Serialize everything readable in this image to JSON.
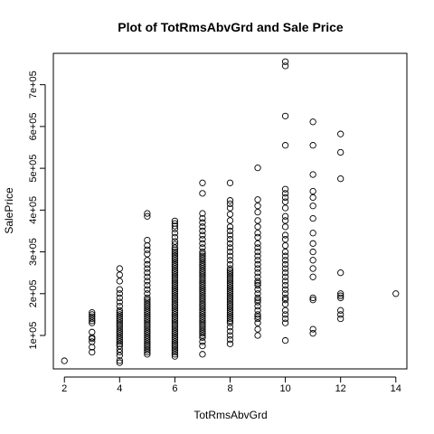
{
  "chart_data": {
    "type": "scatter",
    "title": "Plot of TotRmsAbvGrd and Sale Price",
    "xlabel": "TotRmsAbvGrd",
    "ylabel": "SalePrice",
    "xlim": [
      1.6,
      14.4
    ],
    "ylim": [
      20000,
      775000
    ],
    "x_ticks": [
      2,
      4,
      6,
      8,
      10,
      12,
      14
    ],
    "x_tick_labels": [
      "2",
      "4",
      "6",
      "8",
      "10",
      "12",
      "14"
    ],
    "y_ticks": [
      100000,
      200000,
      300000,
      400000,
      500000,
      600000,
      700000
    ],
    "y_tick_labels": [
      "1e+05",
      "2e+05",
      "3e+05",
      "4e+05",
      "5e+05",
      "6e+05",
      "7e+05"
    ],
    "grid": false,
    "marker": "open-circle",
    "points": [
      [
        2,
        39300
      ],
      [
        3,
        60000
      ],
      [
        3,
        72000
      ],
      [
        3,
        85000
      ],
      [
        3,
        92000
      ],
      [
        3,
        95000
      ],
      [
        3,
        108000
      ],
      [
        3,
        130000
      ],
      [
        3,
        135000
      ],
      [
        3,
        140000
      ],
      [
        3,
        145000
      ],
      [
        3,
        150000
      ],
      [
        3,
        155000
      ],
      [
        4,
        35000
      ],
      [
        4,
        40000
      ],
      [
        4,
        52000
      ],
      [
        4,
        60000
      ],
      [
        4,
        67000
      ],
      [
        4,
        75000
      ],
      [
        4,
        80000
      ],
      [
        4,
        85000
      ],
      [
        4,
        90000
      ],
      [
        4,
        95000
      ],
      [
        4,
        100000
      ],
      [
        4,
        105000
      ],
      [
        4,
        110000
      ],
      [
        4,
        115000
      ],
      [
        4,
        120000
      ],
      [
        4,
        125000
      ],
      [
        4,
        130000
      ],
      [
        4,
        135000
      ],
      [
        4,
        140000
      ],
      [
        4,
        145000
      ],
      [
        4,
        150000
      ],
      [
        4,
        155000
      ],
      [
        4,
        160000
      ],
      [
        4,
        170000
      ],
      [
        4,
        180000
      ],
      [
        4,
        190000
      ],
      [
        4,
        200000
      ],
      [
        4,
        210000
      ],
      [
        4,
        230000
      ],
      [
        4,
        245000
      ],
      [
        4,
        260000
      ],
      [
        5,
        55000
      ],
      [
        5,
        60000
      ],
      [
        5,
        65000
      ],
      [
        5,
        70000
      ],
      [
        5,
        75000
      ],
      [
        5,
        80000
      ],
      [
        5,
        85000
      ],
      [
        5,
        90000
      ],
      [
        5,
        95000
      ],
      [
        5,
        100000
      ],
      [
        5,
        105000
      ],
      [
        5,
        110000
      ],
      [
        5,
        115000
      ],
      [
        5,
        120000
      ],
      [
        5,
        125000
      ],
      [
        5,
        130000
      ],
      [
        5,
        135000
      ],
      [
        5,
        140000
      ],
      [
        5,
        145000
      ],
      [
        5,
        150000
      ],
      [
        5,
        155000
      ],
      [
        5,
        160000
      ],
      [
        5,
        165000
      ],
      [
        5,
        170000
      ],
      [
        5,
        175000
      ],
      [
        5,
        180000
      ],
      [
        5,
        185000
      ],
      [
        5,
        190000
      ],
      [
        5,
        200000
      ],
      [
        5,
        210000
      ],
      [
        5,
        220000
      ],
      [
        5,
        230000
      ],
      [
        5,
        240000
      ],
      [
        5,
        250000
      ],
      [
        5,
        260000
      ],
      [
        5,
        270000
      ],
      [
        5,
        280000
      ],
      [
        5,
        295000
      ],
      [
        5,
        305000
      ],
      [
        5,
        315000
      ],
      [
        5,
        328000
      ],
      [
        5,
        385000
      ],
      [
        5,
        392000
      ],
      [
        6,
        50000
      ],
      [
        6,
        55000
      ],
      [
        6,
        60000
      ],
      [
        6,
        65000
      ],
      [
        6,
        70000
      ],
      [
        6,
        75000
      ],
      [
        6,
        80000
      ],
      [
        6,
        85000
      ],
      [
        6,
        90000
      ],
      [
        6,
        95000
      ],
      [
        6,
        100000
      ],
      [
        6,
        105000
      ],
      [
        6,
        110000
      ],
      [
        6,
        115000
      ],
      [
        6,
        120000
      ],
      [
        6,
        125000
      ],
      [
        6,
        130000
      ],
      [
        6,
        135000
      ],
      [
        6,
        140000
      ],
      [
        6,
        145000
      ],
      [
        6,
        150000
      ],
      [
        6,
        155000
      ],
      [
        6,
        160000
      ],
      [
        6,
        165000
      ],
      [
        6,
        170000
      ],
      [
        6,
        175000
      ],
      [
        6,
        180000
      ],
      [
        6,
        185000
      ],
      [
        6,
        190000
      ],
      [
        6,
        195000
      ],
      [
        6,
        200000
      ],
      [
        6,
        205000
      ],
      [
        6,
        210000
      ],
      [
        6,
        215000
      ],
      [
        6,
        220000
      ],
      [
        6,
        225000
      ],
      [
        6,
        230000
      ],
      [
        6,
        235000
      ],
      [
        6,
        240000
      ],
      [
        6,
        245000
      ],
      [
        6,
        250000
      ],
      [
        6,
        255000
      ],
      [
        6,
        260000
      ],
      [
        6,
        265000
      ],
      [
        6,
        270000
      ],
      [
        6,
        275000
      ],
      [
        6,
        280000
      ],
      [
        6,
        285000
      ],
      [
        6,
        290000
      ],
      [
        6,
        295000
      ],
      [
        6,
        300000
      ],
      [
        6,
        305000
      ],
      [
        6,
        310000
      ],
      [
        6,
        318000
      ],
      [
        6,
        325000
      ],
      [
        6,
        335000
      ],
      [
        6,
        345000
      ],
      [
        6,
        355000
      ],
      [
        6,
        362000
      ],
      [
        6,
        368000
      ],
      [
        6,
        374000
      ],
      [
        7,
        55000
      ],
      [
        7,
        75000
      ],
      [
        7,
        85000
      ],
      [
        7,
        95000
      ],
      [
        7,
        100000
      ],
      [
        7,
        105000
      ],
      [
        7,
        110000
      ],
      [
        7,
        115000
      ],
      [
        7,
        120000
      ],
      [
        7,
        125000
      ],
      [
        7,
        130000
      ],
      [
        7,
        135000
      ],
      [
        7,
        140000
      ],
      [
        7,
        145000
      ],
      [
        7,
        150000
      ],
      [
        7,
        155000
      ],
      [
        7,
        160000
      ],
      [
        7,
        165000
      ],
      [
        7,
        170000
      ],
      [
        7,
        175000
      ],
      [
        7,
        180000
      ],
      [
        7,
        185000
      ],
      [
        7,
        190000
      ],
      [
        7,
        195000
      ],
      [
        7,
        200000
      ],
      [
        7,
        205000
      ],
      [
        7,
        210000
      ],
      [
        7,
        215000
      ],
      [
        7,
        220000
      ],
      [
        7,
        225000
      ],
      [
        7,
        230000
      ],
      [
        7,
        235000
      ],
      [
        7,
        240000
      ],
      [
        7,
        245000
      ],
      [
        7,
        250000
      ],
      [
        7,
        255000
      ],
      [
        7,
        260000
      ],
      [
        7,
        265000
      ],
      [
        7,
        270000
      ],
      [
        7,
        275000
      ],
      [
        7,
        280000
      ],
      [
        7,
        285000
      ],
      [
        7,
        290000
      ],
      [
        7,
        295000
      ],
      [
        7,
        300000
      ],
      [
        7,
        310000
      ],
      [
        7,
        320000
      ],
      [
        7,
        330000
      ],
      [
        7,
        340000
      ],
      [
        7,
        350000
      ],
      [
        7,
        360000
      ],
      [
        7,
        370000
      ],
      [
        7,
        380000
      ],
      [
        7,
        392000
      ],
      [
        7,
        440000
      ],
      [
        7,
        465000
      ],
      [
        8,
        80000
      ],
      [
        8,
        90000
      ],
      [
        8,
        100000
      ],
      [
        8,
        110000
      ],
      [
        8,
        120000
      ],
      [
        8,
        130000
      ],
      [
        8,
        135000
      ],
      [
        8,
        140000
      ],
      [
        8,
        145000
      ],
      [
        8,
        150000
      ],
      [
        8,
        155000
      ],
      [
        8,
        160000
      ],
      [
        8,
        165000
      ],
      [
        8,
        170000
      ],
      [
        8,
        175000
      ],
      [
        8,
        180000
      ],
      [
        8,
        185000
      ],
      [
        8,
        190000
      ],
      [
        8,
        195000
      ],
      [
        8,
        200000
      ],
      [
        8,
        205000
      ],
      [
        8,
        210000
      ],
      [
        8,
        215000
      ],
      [
        8,
        220000
      ],
      [
        8,
        225000
      ],
      [
        8,
        230000
      ],
      [
        8,
        235000
      ],
      [
        8,
        240000
      ],
      [
        8,
        245000
      ],
      [
        8,
        250000
      ],
      [
        8,
        255000
      ],
      [
        8,
        260000
      ],
      [
        8,
        270000
      ],
      [
        8,
        280000
      ],
      [
        8,
        290000
      ],
      [
        8,
        300000
      ],
      [
        8,
        310000
      ],
      [
        8,
        320000
      ],
      [
        8,
        330000
      ],
      [
        8,
        340000
      ],
      [
        8,
        350000
      ],
      [
        8,
        360000
      ],
      [
        8,
        375000
      ],
      [
        8,
        390000
      ],
      [
        8,
        405000
      ],
      [
        8,
        415000
      ],
      [
        8,
        423000
      ],
      [
        8,
        465000
      ],
      [
        9,
        100000
      ],
      [
        9,
        115000
      ],
      [
        9,
        130000
      ],
      [
        9,
        140000
      ],
      [
        9,
        145000
      ],
      [
        9,
        150000
      ],
      [
        9,
        160000
      ],
      [
        9,
        170000
      ],
      [
        9,
        180000
      ],
      [
        9,
        185000
      ],
      [
        9,
        190000
      ],
      [
        9,
        200000
      ],
      [
        9,
        210000
      ],
      [
        9,
        220000
      ],
      [
        9,
        225000
      ],
      [
        9,
        230000
      ],
      [
        9,
        240000
      ],
      [
        9,
        250000
      ],
      [
        9,
        260000
      ],
      [
        9,
        270000
      ],
      [
        9,
        280000
      ],
      [
        9,
        290000
      ],
      [
        9,
        300000
      ],
      [
        9,
        310000
      ],
      [
        9,
        320000
      ],
      [
        9,
        335000
      ],
      [
        9,
        345000
      ],
      [
        9,
        360000
      ],
      [
        9,
        375000
      ],
      [
        9,
        395000
      ],
      [
        9,
        410000
      ],
      [
        9,
        425000
      ],
      [
        9,
        501000
      ],
      [
        10,
        88000
      ],
      [
        10,
        130000
      ],
      [
        10,
        140000
      ],
      [
        10,
        150000
      ],
      [
        10,
        160000
      ],
      [
        10,
        175000
      ],
      [
        10,
        185000
      ],
      [
        10,
        190000
      ],
      [
        10,
        200000
      ],
      [
        10,
        210000
      ],
      [
        10,
        220000
      ],
      [
        10,
        230000
      ],
      [
        10,
        240000
      ],
      [
        10,
        250000
      ],
      [
        10,
        260000
      ],
      [
        10,
        270000
      ],
      [
        10,
        280000
      ],
      [
        10,
        290000
      ],
      [
        10,
        300000
      ],
      [
        10,
        315000
      ],
      [
        10,
        330000
      ],
      [
        10,
        340000
      ],
      [
        10,
        360000
      ],
      [
        10,
        375000
      ],
      [
        10,
        385000
      ],
      [
        10,
        405000
      ],
      [
        10,
        420000
      ],
      [
        10,
        430000
      ],
      [
        10,
        440000
      ],
      [
        10,
        450000
      ],
      [
        10,
        555000
      ],
      [
        10,
        625000
      ],
      [
        10,
        745000
      ],
      [
        10,
        755000
      ],
      [
        11,
        105000
      ],
      [
        11,
        115000
      ],
      [
        11,
        185000
      ],
      [
        11,
        190000
      ],
      [
        11,
        240000
      ],
      [
        11,
        260000
      ],
      [
        11,
        280000
      ],
      [
        11,
        300000
      ],
      [
        11,
        320000
      ],
      [
        11,
        345000
      ],
      [
        11,
        380000
      ],
      [
        11,
        410000
      ],
      [
        11,
        430000
      ],
      [
        11,
        445000
      ],
      [
        11,
        485000
      ],
      [
        11,
        555000
      ],
      [
        11,
        611000
      ],
      [
        12,
        140000
      ],
      [
        12,
        150000
      ],
      [
        12,
        160000
      ],
      [
        12,
        190000
      ],
      [
        12,
        195000
      ],
      [
        12,
        200000
      ],
      [
        12,
        250000
      ],
      [
        12,
        475000
      ],
      [
        12,
        538000
      ],
      [
        12,
        582000
      ],
      [
        14,
        200000
      ]
    ]
  }
}
